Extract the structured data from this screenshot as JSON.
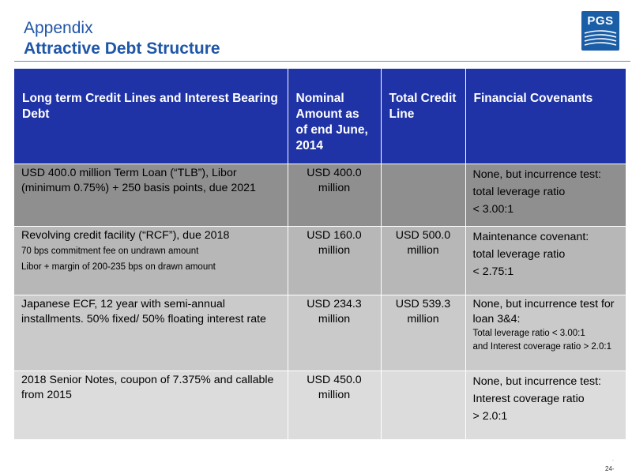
{
  "header": {
    "title": "Appendix",
    "subtitle": "Attractive Debt Structure",
    "logo_text": "PGS"
  },
  "table": {
    "columns": [
      "Long term Credit Lines and Interest Bearing Debt",
      "Nominal Amount as of end June, 2014",
      "Total Credit Line",
      "Financial Covenants"
    ],
    "rows": [
      {
        "facility": "USD 400.0 million Term Loan (“TLB”), Libor (minimum 0.75%) + 250 basis points, due 2021",
        "nominal": "USD 400.0 million",
        "credit_line": "",
        "covenant_line1": "None, but incurrence test:",
        "covenant_line2": "total leverage ratio",
        "covenant_line3": "< 3.00:1"
      },
      {
        "facility": "Revolving credit facility (“RCF”), due 2018",
        "facility_note1": "70 bps commitment fee on undrawn amount",
        "facility_note2": "Libor + margin of 200-235 bps on drawn amount",
        "nominal": "USD 160.0 million",
        "credit_line": "USD 500.0 million",
        "covenant_line1": "Maintenance covenant:",
        "covenant_line2": "total leverage ratio",
        "covenant_line3": "< 2.75:1"
      },
      {
        "facility": "Japanese ECF, 12 year with semi-annual installments. 50% fixed/ 50% floating interest rate",
        "nominal": "USD 234.3 million",
        "credit_line": "USD 539.3 million",
        "covenant_line1": "None, but incurrence test for loan 3&4:",
        "covenant_note1": "Total leverage ratio < 3.00:1",
        "covenant_note2": "and Interest coverage ratio > 2.0:1"
      },
      {
        "facility": "2018 Senior Notes, coupon of 7.375% and callable from 2015",
        "nominal": "USD 450.0 million",
        "credit_line": "",
        "covenant_line1": "None, but incurrence test:",
        "covenant_line2": "Interest coverage ratio",
        "covenant_line3": "> 2.0:1"
      }
    ]
  },
  "footer": {
    "page_number": "24-",
    "dot": "-"
  },
  "colors": {
    "title_blue": "#1f56a8",
    "header_blue": "#1f33a6",
    "row1_gray": "#8f8f8f",
    "row2_gray": "#b7b7b7",
    "row3_gray": "#cacaca",
    "row4_gray": "#dcdcdc"
  }
}
